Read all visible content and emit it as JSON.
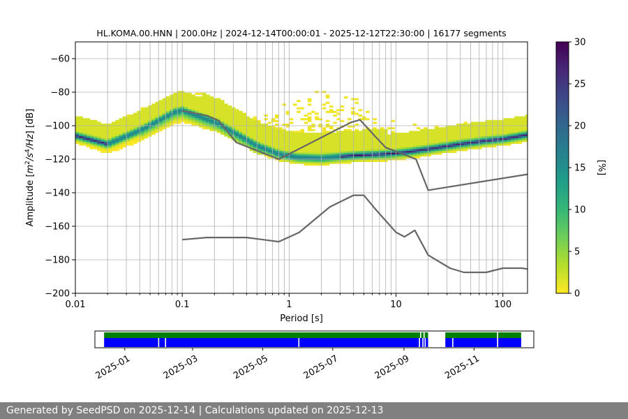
{
  "chart_data": {
    "type": "heatmap",
    "title": "HL.KOMA.00.HNN | 200.0Hz | 2024-12-14T00:00:01 - 2025-12-12T22:30:00 | 16177 segments",
    "xlabel": "Period [s]",
    "ylabel": "Amplitude [m^2/s^4/Hz] [dB]",
    "x_scale": "log",
    "xlim": [
      0.01,
      170
    ],
    "ylim": [
      -200,
      -50
    ],
    "grid": true,
    "x_ticks": [
      0.01,
      0.1,
      1,
      10,
      100
    ],
    "x_tick_labels": [
      "0.01",
      "0.1",
      "1",
      "10",
      "100"
    ],
    "y_ticks": [
      -200,
      -180,
      -160,
      -140,
      -120,
      -100,
      -80,
      -60
    ],
    "y_tick_labels": [
      "−200",
      "−180",
      "−160",
      "−140",
      "−120",
      "−100",
      "−80",
      "−60"
    ],
    "colorbar": {
      "label": "[%]",
      "range": [
        0,
        30
      ],
      "ticks": [
        0,
        5,
        10,
        15,
        20,
        25,
        30
      ],
      "tick_labels": [
        "0",
        "5",
        "10",
        "15",
        "20",
        "25",
        "30"
      ],
      "colormap": [
        "#fde725",
        "#b5de2b",
        "#6ece58",
        "#35b779",
        "#1f9e89",
        "#26828e",
        "#31688e",
        "#3e4989",
        "#482878",
        "#440154"
      ]
    },
    "series": [
      {
        "role": "model-upper",
        "color": "#666666",
        "points": [
          [
            0.1,
            -91
          ],
          [
            0.17,
            -94
          ],
          [
            0.22,
            -97
          ],
          [
            0.32,
            -110
          ],
          [
            0.8,
            -120
          ],
          [
            3.8,
            -98
          ],
          [
            4.6,
            -96.5
          ],
          [
            6.3,
            -106
          ],
          [
            8,
            -113
          ],
          [
            15.4,
            -120
          ],
          [
            20,
            -138.5
          ],
          [
            170,
            -129
          ]
        ]
      },
      {
        "role": "model-lower",
        "color": "#666666",
        "points": [
          [
            0.1,
            -168
          ],
          [
            0.17,
            -166.7
          ],
          [
            0.4,
            -166.7
          ],
          [
            0.8,
            -169.2
          ],
          [
            1.24,
            -163.7
          ],
          [
            2.4,
            -148.5
          ],
          [
            4,
            -141.5
          ],
          [
            5,
            -141.5
          ],
          [
            6.3,
            -149.2
          ],
          [
            10,
            -163.6
          ],
          [
            12,
            -166.3
          ],
          [
            15,
            -162.4
          ],
          [
            20,
            -177.2
          ],
          [
            32,
            -185
          ],
          [
            43,
            -187.5
          ],
          [
            70,
            -187.5
          ],
          [
            100,
            -185
          ],
          [
            150,
            -185
          ],
          [
            170,
            -185.5
          ]
        ]
      }
    ],
    "mode_curve": [
      [
        0.01,
        -106
      ],
      [
        0.02,
        -111
      ],
      [
        0.04,
        -103
      ],
      [
        0.065,
        -96
      ],
      [
        0.085,
        -92
      ],
      [
        0.1,
        -91
      ],
      [
        0.15,
        -95
      ],
      [
        0.22,
        -99
      ],
      [
        0.3,
        -104
      ],
      [
        0.5,
        -112
      ],
      [
        0.8,
        -117
      ],
      [
        1.2,
        -119
      ],
      [
        2,
        -119.5
      ],
      [
        3,
        -118.5
      ],
      [
        5,
        -117.5
      ],
      [
        8,
        -117
      ],
      [
        12,
        -116
      ],
      [
        20,
        -114
      ],
      [
        40,
        -111
      ],
      [
        70,
        -109
      ],
      [
        100,
        -108
      ],
      [
        170,
        -105.5
      ]
    ],
    "availability": {
      "x_ticks": [
        "2025-01",
        "2025-03",
        "2025-05",
        "2025-07",
        "2025-09",
        "2025-11"
      ],
      "start": "2024-12-14",
      "end": "2025-12-12",
      "tracks": [
        {
          "role": "data",
          "color": "#008000",
          "gaps": [
            [
              "2025-09-15",
              "2025-09-16"
            ],
            [
              "2025-09-18",
              "2025-09-19"
            ],
            [
              "2025-09-22",
              "2025-10-07"
            ],
            [
              "2025-11-21",
              "2025-11-22"
            ]
          ]
        },
        {
          "role": "used",
          "color": "#0000ff",
          "gaps": [
            [
              "2025-01-30",
              "2025-01-31"
            ],
            [
              "2025-02-05",
              "2025-02-06"
            ],
            [
              "2025-06-01",
              "2025-06-02"
            ],
            [
              "2025-09-14",
              "2025-09-15"
            ],
            [
              "2025-09-17",
              "2025-09-18"
            ],
            [
              "2025-09-19",
              "2025-09-20"
            ],
            [
              "2025-09-22",
              "2025-10-07"
            ],
            [
              "2025-10-13",
              "2025-10-14"
            ],
            [
              "2025-11-21",
              "2025-11-22"
            ]
          ]
        }
      ]
    }
  },
  "footer": {
    "text": "Generated by SeedPSD on 2025-12-14 | Calculations updated on 2025-12-13"
  }
}
